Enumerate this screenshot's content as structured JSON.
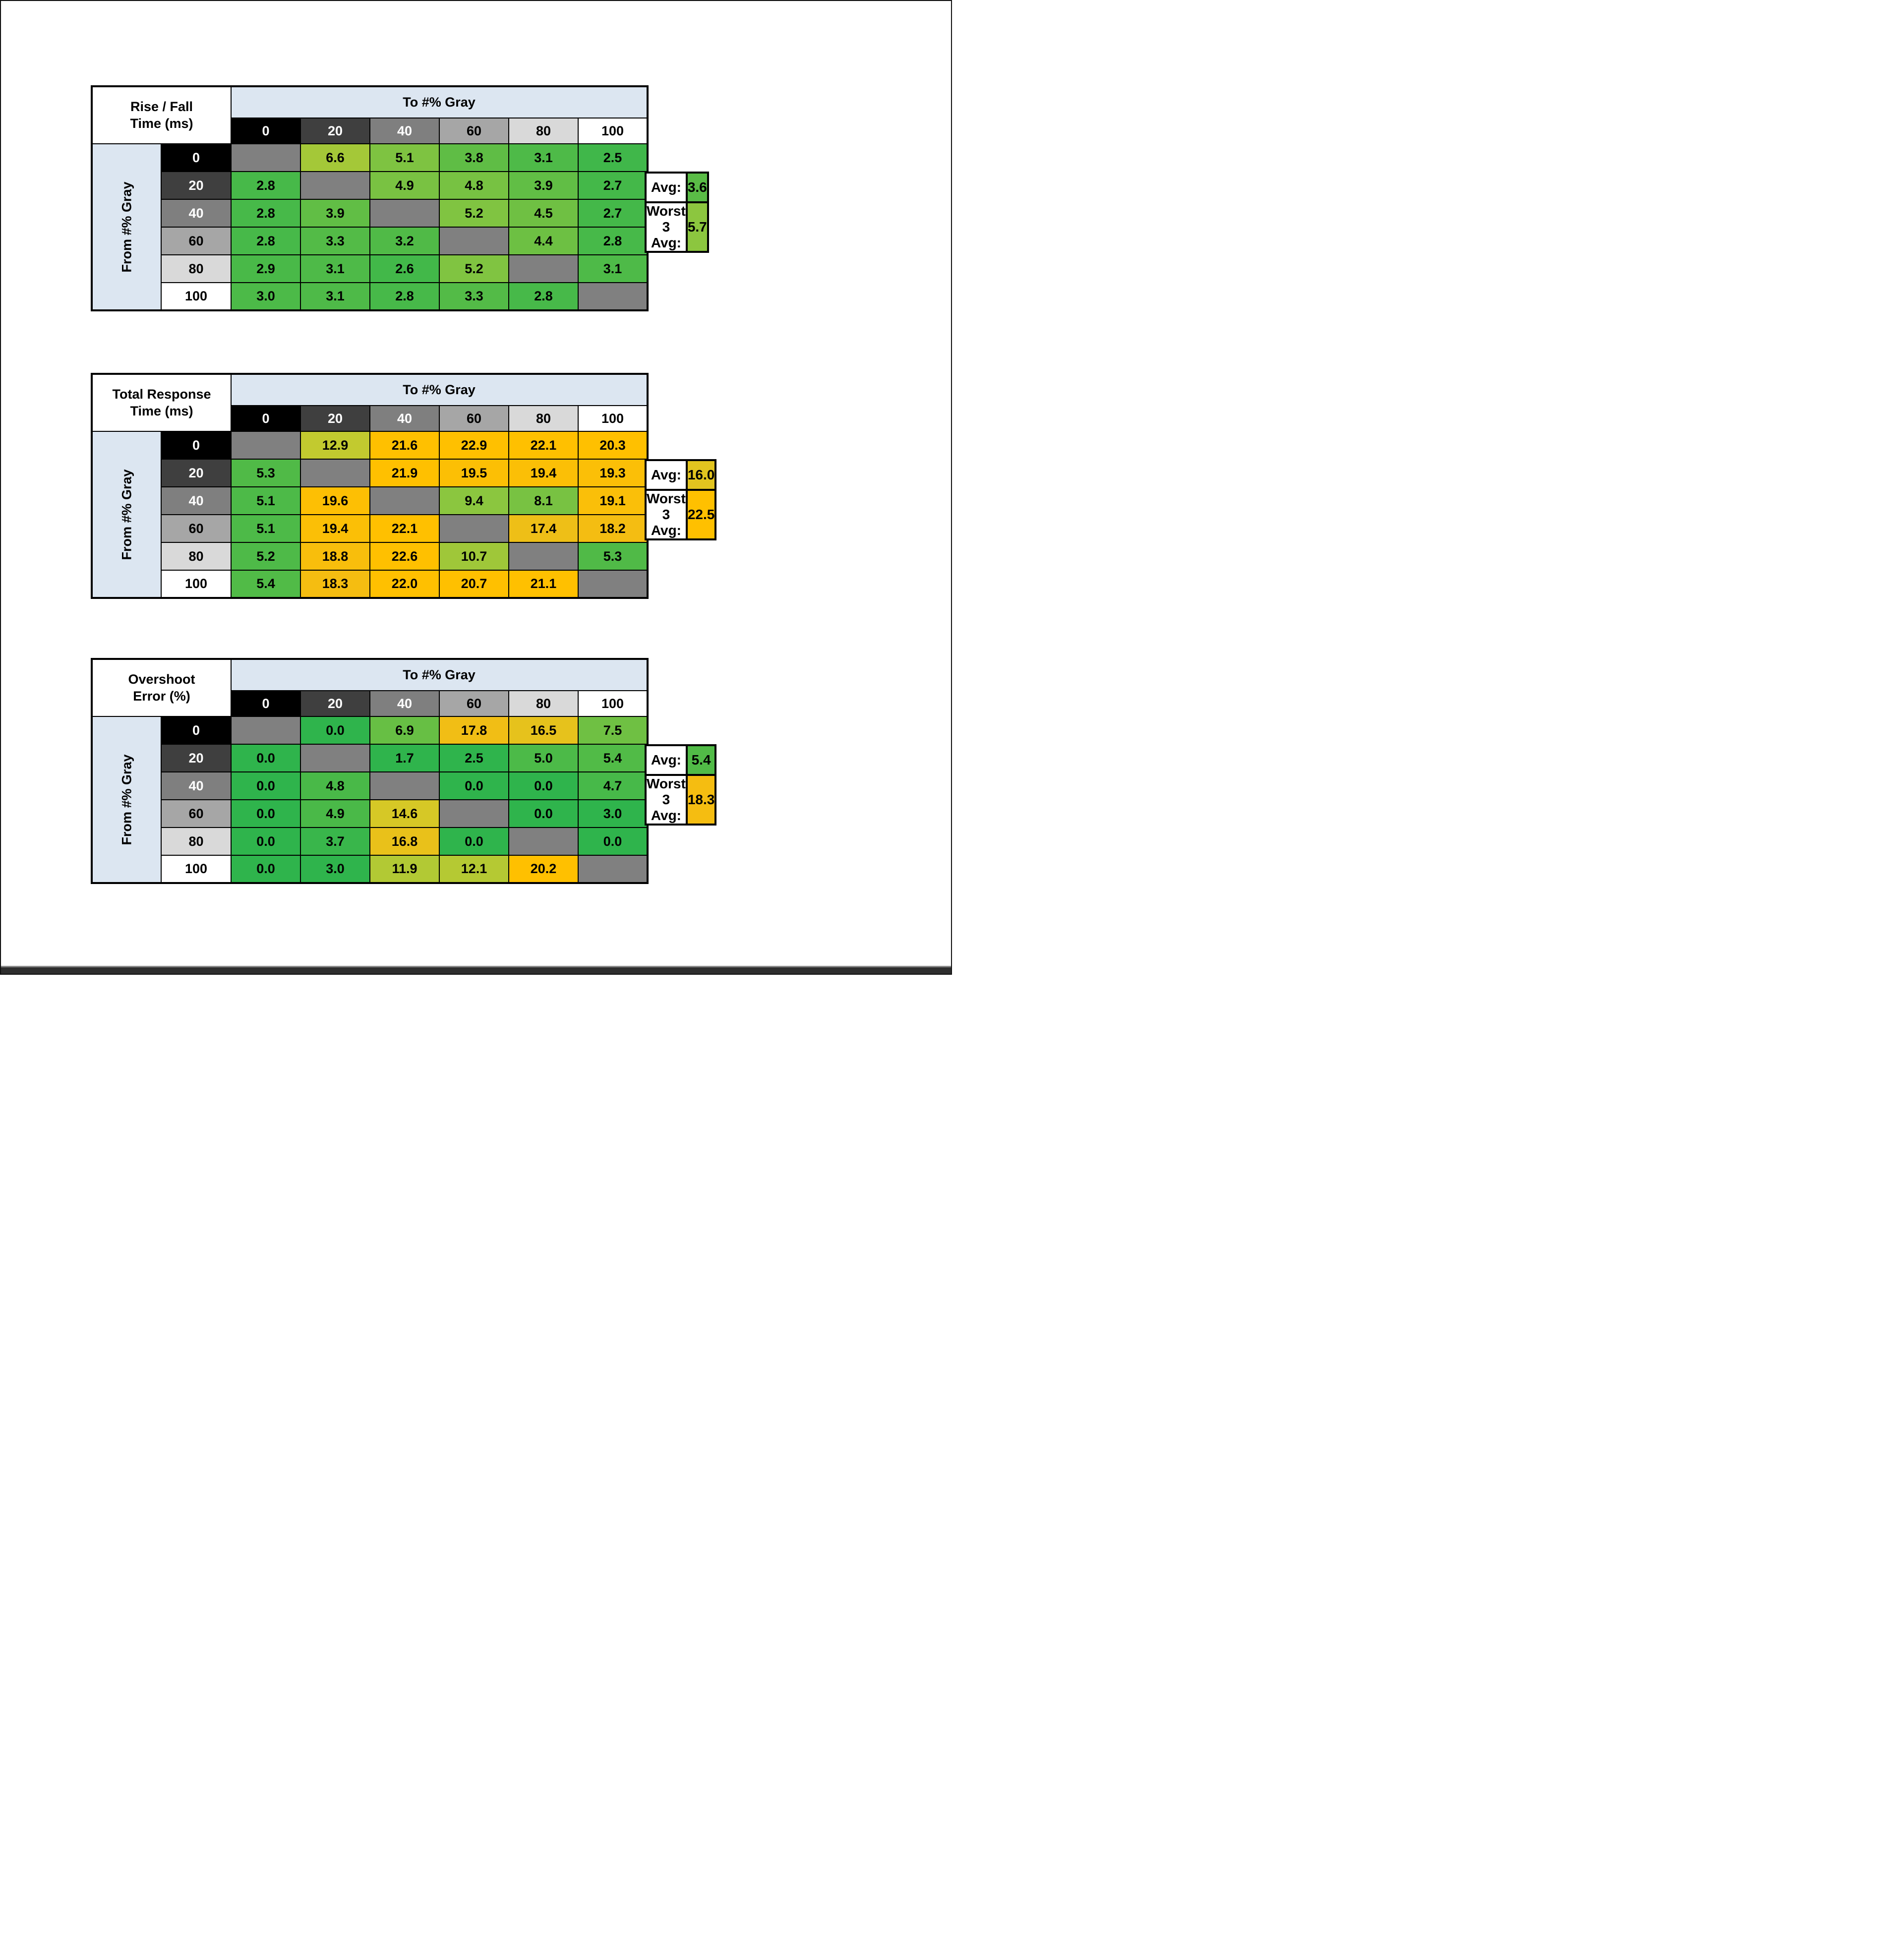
{
  "page": {
    "background": "#ffffff",
    "border_color": "#111111"
  },
  "palette": {
    "band_bg": "#dce6f1",
    "title_bg": "#ffffff",
    "diagonal_bg": "#808080",
    "grid_border": "#000000",
    "gray_headers": [
      {
        "label": "0",
        "bg": "#000000",
        "fg": "#ffffff"
      },
      {
        "label": "20",
        "bg": "#3f3f3f",
        "fg": "#ffffff"
      },
      {
        "label": "40",
        "bg": "#7f7f7f",
        "fg": "#ffffff"
      },
      {
        "label": "60",
        "bg": "#a6a6a6",
        "fg": "#000000"
      },
      {
        "label": "80",
        "bg": "#d9d9d9",
        "fg": "#000000"
      },
      {
        "label": "100",
        "bg": "#ffffff",
        "fg": "#000000"
      }
    ],
    "color_scale_stops": [
      [
        0.0,
        "#2FB44C"
      ],
      [
        0.12,
        "#2FB44C"
      ],
      [
        0.38,
        "#8CC63F"
      ],
      [
        0.55,
        "#CFCB2B"
      ],
      [
        0.72,
        "#F3BD14"
      ],
      [
        0.8,
        "#FFC000"
      ],
      [
        1.0,
        "#FFC000"
      ]
    ]
  },
  "chart_data": [
    {
      "type": "heatmap",
      "title": "Rise / Fall Time (ms)",
      "title_lines": [
        "Rise / Fall",
        "Time (ms)"
      ],
      "x_axis_label": "To #% Gray",
      "y_axis_label": "From #% Gray",
      "x_ticks": [
        "0",
        "20",
        "40",
        "60",
        "80",
        "100"
      ],
      "y_ticks": [
        "0",
        "20",
        "40",
        "60",
        "80",
        "100"
      ],
      "values": [
        [
          null,
          6.6,
          5.1,
          3.8,
          3.1,
          2.5
        ],
        [
          2.8,
          null,
          4.9,
          4.8,
          3.9,
          2.7
        ],
        [
          2.8,
          3.9,
          null,
          5.2,
          4.5,
          2.7
        ],
        [
          2.8,
          3.3,
          3.2,
          null,
          4.4,
          2.8
        ],
        [
          2.9,
          3.1,
          2.6,
          5.2,
          null,
          3.1
        ],
        [
          3.0,
          3.1,
          2.8,
          3.3,
          2.8,
          null
        ]
      ],
      "color_scale_max": 15,
      "summary": {
        "avg_label": "Avg:",
        "avg": "3.6",
        "worst_label": "Worst 3 Avg:",
        "worst3_avg": "5.7"
      }
    },
    {
      "type": "heatmap",
      "title": "Total Response Time (ms)",
      "title_lines": [
        "Total Response",
        "Time (ms)"
      ],
      "x_axis_label": "To #% Gray",
      "y_axis_label": "From #% Gray",
      "x_ticks": [
        "0",
        "20",
        "40",
        "60",
        "80",
        "100"
      ],
      "y_ticks": [
        "0",
        "20",
        "40",
        "60",
        "80",
        "100"
      ],
      "values": [
        [
          null,
          12.9,
          21.6,
          22.9,
          22.1,
          20.3
        ],
        [
          5.3,
          null,
          21.9,
          19.5,
          19.4,
          19.3
        ],
        [
          5.1,
          19.6,
          null,
          9.4,
          8.1,
          19.1
        ],
        [
          5.1,
          19.4,
          22.1,
          null,
          17.4,
          18.2
        ],
        [
          5.2,
          18.8,
          22.6,
          10.7,
          null,
          5.3
        ],
        [
          5.4,
          18.3,
          22.0,
          20.7,
          21.1,
          null
        ]
      ],
      "color_scale_max": 25,
      "summary": {
        "avg_label": "Avg:",
        "avg": "16.0",
        "worst_label": "Worst 3 Avg:",
        "worst3_avg": "22.5"
      }
    },
    {
      "type": "heatmap",
      "title": "Overshoot Error (%)",
      "title_lines": [
        "Overshoot",
        "Error (%)"
      ],
      "x_axis_label": "To #% Gray",
      "y_axis_label": "From #% Gray",
      "x_ticks": [
        "0",
        "20",
        "40",
        "60",
        "80",
        "100"
      ],
      "y_ticks": [
        "0",
        "20",
        "40",
        "60",
        "80",
        "100"
      ],
      "values": [
        [
          null,
          0.0,
          6.9,
          17.8,
          16.5,
          7.5
        ],
        [
          0.0,
          null,
          1.7,
          2.5,
          5.0,
          5.4
        ],
        [
          0.0,
          4.8,
          null,
          0.0,
          0.0,
          4.7
        ],
        [
          0.0,
          4.9,
          14.6,
          null,
          0.0,
          3.0
        ],
        [
          0.0,
          3.7,
          16.8,
          0.0,
          null,
          0.0
        ],
        [
          0.0,
          3.0,
          11.9,
          12.1,
          20.2,
          null
        ]
      ],
      "color_scale_max": 25,
      "summary": {
        "avg_label": "Avg:",
        "avg": "5.4",
        "worst_label": "Worst 3 Avg:",
        "worst3_avg": "18.3"
      }
    }
  ]
}
